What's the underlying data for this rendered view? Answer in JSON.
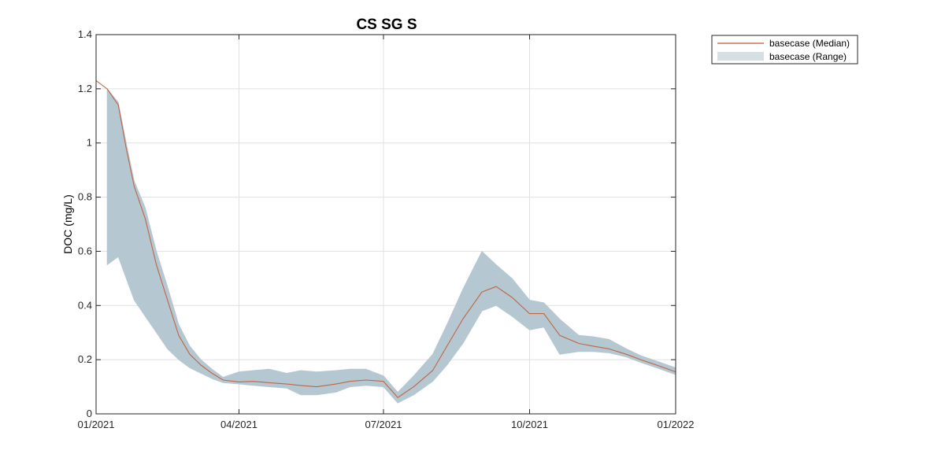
{
  "chart_data": {
    "type": "area",
    "title": "CS SG S",
    "xlabel": "",
    "ylabel": "DOC (mg/L)",
    "xlim": [
      "2021-01-01",
      "2022-01-01"
    ],
    "ylim": [
      0,
      1.4
    ],
    "x_ticks": [
      "2021-01-01",
      "2021-04-01",
      "2021-07-01",
      "2021-10-01",
      "2022-01-01"
    ],
    "x_tick_labels": [
      "01/2021",
      "04/2021",
      "07/2021",
      "10/2021",
      "01/2022"
    ],
    "y_ticks": [
      0,
      0.2,
      0.4,
      0.6,
      0.8,
      1,
      1.2,
      1.4
    ],
    "y_tick_labels": [
      "0",
      "0.2",
      "0.4",
      "0.6",
      "0.8",
      "1",
      "1.2",
      "1.4"
    ],
    "grid": true,
    "legend_position": "outside top-right",
    "colors": {
      "median": "#c0532e",
      "range": "#b5c8d1",
      "legend_range": "#d5dfe4",
      "grid": "#e0e0e0",
      "axis": "#262626"
    },
    "series": [
      {
        "name": "basecase (Median)",
        "kind": "line",
        "x": [
          "2021-01-01",
          "2021-01-08",
          "2021-01-15",
          "2021-01-20",
          "2021-01-25",
          "2021-02-01",
          "2021-02-08",
          "2021-02-15",
          "2021-02-22",
          "2021-03-01",
          "2021-03-08",
          "2021-03-15",
          "2021-03-22",
          "2021-04-01",
          "2021-04-10",
          "2021-04-20",
          "2021-05-01",
          "2021-05-10",
          "2021-05-20",
          "2021-06-01",
          "2021-06-10",
          "2021-06-20",
          "2021-07-01",
          "2021-07-10",
          "2021-07-20",
          "2021-08-01",
          "2021-08-10",
          "2021-08-20",
          "2021-09-01",
          "2021-09-10",
          "2021-09-20",
          "2021-10-01",
          "2021-10-10",
          "2021-10-20",
          "2021-11-01",
          "2021-11-10",
          "2021-11-20",
          "2021-12-01",
          "2021-12-10",
          "2021-12-20",
          "2022-01-01"
        ],
        "values": [
          1.23,
          1.2,
          1.14,
          0.98,
          0.84,
          0.72,
          0.55,
          0.42,
          0.29,
          0.22,
          0.18,
          0.15,
          0.125,
          0.118,
          0.12,
          0.115,
          0.11,
          0.105,
          0.1,
          0.11,
          0.12,
          0.125,
          0.12,
          0.06,
          0.1,
          0.16,
          0.25,
          0.35,
          0.45,
          0.47,
          0.43,
          0.37,
          0.37,
          0.29,
          0.26,
          0.25,
          0.24,
          0.22,
          0.2,
          0.18,
          0.155
        ]
      },
      {
        "name": "basecase (Range)",
        "kind": "range",
        "x": [
          "2021-01-08",
          "2021-01-15",
          "2021-01-20",
          "2021-01-25",
          "2021-02-01",
          "2021-02-08",
          "2021-02-15",
          "2021-02-22",
          "2021-03-01",
          "2021-03-08",
          "2021-03-15",
          "2021-03-22",
          "2021-04-01",
          "2021-04-10",
          "2021-04-20",
          "2021-05-01",
          "2021-05-10",
          "2021-05-20",
          "2021-06-01",
          "2021-06-10",
          "2021-06-20",
          "2021-07-01",
          "2021-07-10",
          "2021-07-20",
          "2021-08-01",
          "2021-08-10",
          "2021-08-20",
          "2021-09-01",
          "2021-09-10",
          "2021-09-20",
          "2021-10-01",
          "2021-10-10",
          "2021-10-20",
          "2021-11-01",
          "2021-11-10",
          "2021-11-20",
          "2021-12-01",
          "2021-12-10",
          "2021-12-20",
          "2022-01-01"
        ],
        "low": [
          0.55,
          0.58,
          0.5,
          0.42,
          0.36,
          0.3,
          0.24,
          0.2,
          0.17,
          0.15,
          0.13,
          0.115,
          0.11,
          0.105,
          0.1,
          0.095,
          0.07,
          0.07,
          0.08,
          0.1,
          0.105,
          0.1,
          0.04,
          0.07,
          0.12,
          0.18,
          0.26,
          0.38,
          0.4,
          0.36,
          0.31,
          0.32,
          0.22,
          0.23,
          0.23,
          0.225,
          0.21,
          0.19,
          0.17,
          0.145
        ],
        "high": [
          1.2,
          1.15,
          1.0,
          0.86,
          0.76,
          0.6,
          0.47,
          0.33,
          0.25,
          0.2,
          0.165,
          0.135,
          0.155,
          0.16,
          0.165,
          0.15,
          0.16,
          0.155,
          0.16,
          0.165,
          0.165,
          0.14,
          0.08,
          0.14,
          0.22,
          0.33,
          0.46,
          0.6,
          0.55,
          0.5,
          0.42,
          0.41,
          0.35,
          0.29,
          0.285,
          0.275,
          0.24,
          0.215,
          0.195,
          0.17
        ]
      }
    ]
  }
}
